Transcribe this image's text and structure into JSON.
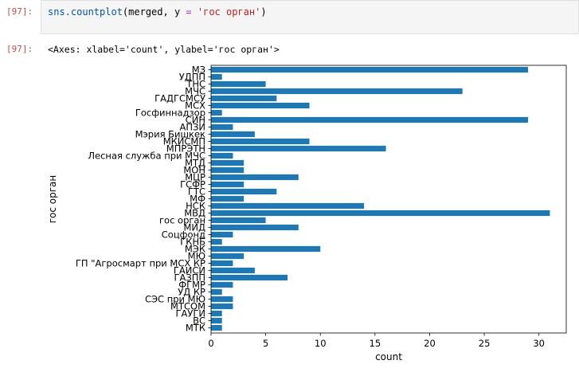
{
  "cell": {
    "input_prompt": "[97]:",
    "code": {
      "func": "sns.countplot",
      "open": "(merged, y ",
      "eq": "=",
      "space": " ",
      "arg": "'гос орган'",
      "close": ")"
    },
    "output_prompt": "[97]:",
    "output_text": "<Axes: xlabel='count', ylabel='гос орган'>"
  },
  "colors": {
    "bar": "#1f77b4",
    "prompt": "#c0504d"
  },
  "chart_data": {
    "type": "bar",
    "orientation": "horizontal",
    "categories": [
      "МЗ",
      "УДПП",
      "ТНС",
      "МЧС",
      "ГАДГСМСУ",
      "МСХ",
      "Госфиннадзор",
      "СИН",
      "АПЗИ",
      "Мэрия Бишкек",
      "МКИСМП",
      "МПРЭТН",
      "Лесная служба при МЧС",
      "МТД",
      "МОН",
      "МЦР",
      "ГСФР",
      "ГТС",
      "МФ",
      "НСК",
      "МВД",
      "гос орган",
      "МИД",
      "Соцфонд",
      "ГКНБ",
      "МЭК",
      "МЮ",
      "ГП \"Агросмарт при МСХ КР",
      "ГАИСИ",
      "ГАЗПП",
      "ФГМР",
      "УД КР",
      "СЭС при МЮ",
      "МТСОМ",
      "ГАУГИ",
      "ВС",
      "МТК"
    ],
    "values": [
      29,
      1,
      5,
      23,
      6,
      9,
      1,
      29,
      2,
      4,
      9,
      16,
      2,
      3,
      3,
      8,
      3,
      6,
      3,
      14,
      31,
      5,
      8,
      2,
      1,
      10,
      3,
      2,
      4,
      7,
      2,
      1,
      2,
      2,
      1,
      1,
      1
    ],
    "xlabel": "count",
    "ylabel": "гос орган",
    "xlim": [
      0,
      32.5
    ],
    "xticks": [
      0,
      5,
      10,
      15,
      20,
      25,
      30
    ],
    "grid": false
  }
}
